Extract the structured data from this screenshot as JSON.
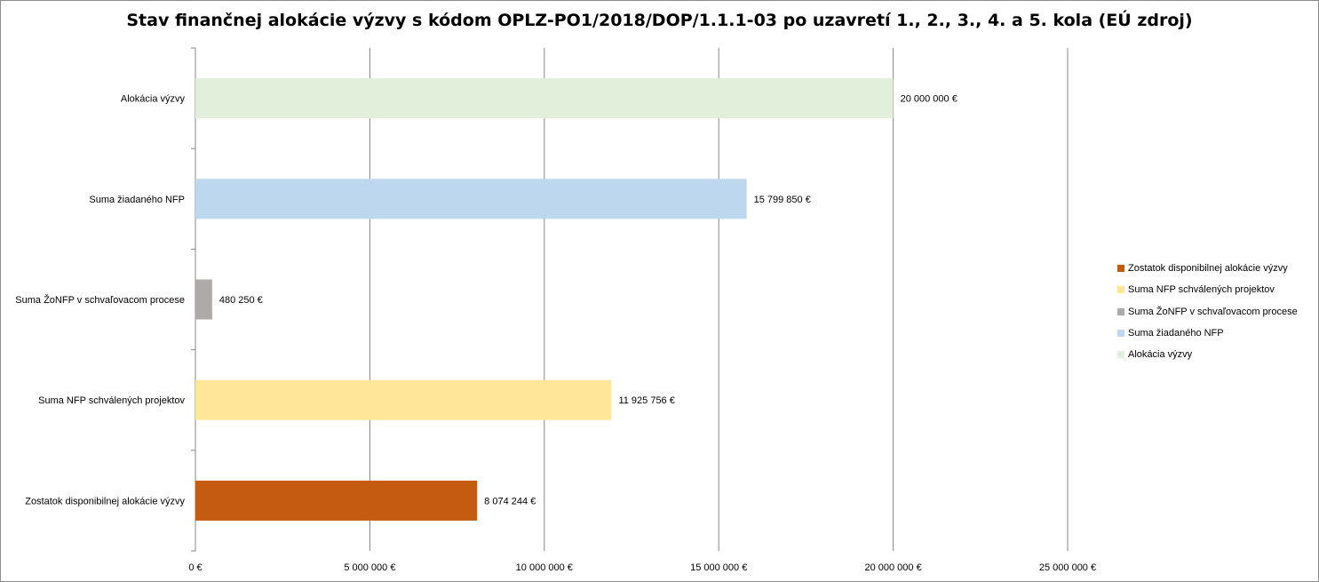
{
  "chart_data": {
    "type": "bar",
    "orientation": "horizontal",
    "title": "Stav finančnej alokácie výzvy s kódom OPLZ-PO1/2018/DOP/1.1.1-03  po uzavretí 1., 2., 3., 4. a 5. kola (EÚ zdroj)",
    "categories": [
      "Alokácia výzvy",
      "Suma žiadaného NFP",
      "Suma ŽoNFP v schvaľovacom procese",
      "Suma NFP schválených projektov",
      "Zostatok disponibilnej alokácie výzvy"
    ],
    "values": [
      20000000,
      15799850,
      480250,
      11925756,
      8074244
    ],
    "value_labels": [
      "20 000 000 €",
      "15 799 850 €",
      "480 250 €",
      "11 925 756 €",
      "8 074 244 €"
    ],
    "colors": [
      "#e2efda",
      "#bdd7ee",
      "#aeaaaa",
      "#ffe699",
      "#c55a11"
    ],
    "xlim": [
      0,
      25000000
    ],
    "xticks": [
      0,
      5000000,
      10000000,
      15000000,
      20000000,
      25000000
    ],
    "xtick_labels": [
      "0 €",
      "5 000 000 €",
      "10 000 000 €",
      "15 000 000 €",
      "20 000 000 €",
      "25 000 000 €"
    ],
    "grid": true,
    "legend_position": "right",
    "legend": [
      {
        "label": "Zostatok disponibilnej alokácie výzvy",
        "color": "#c55a11"
      },
      {
        "label": "Suma NFP schválených projektov",
        "color": "#ffe699"
      },
      {
        "label": "Suma ŽoNFP v schvaľovacom procese",
        "color": "#aeaaaa"
      },
      {
        "label": "Suma žiadaného NFP",
        "color": "#bdd7ee"
      },
      {
        "label": "Alokácia výzvy",
        "color": "#e2efda"
      }
    ]
  }
}
